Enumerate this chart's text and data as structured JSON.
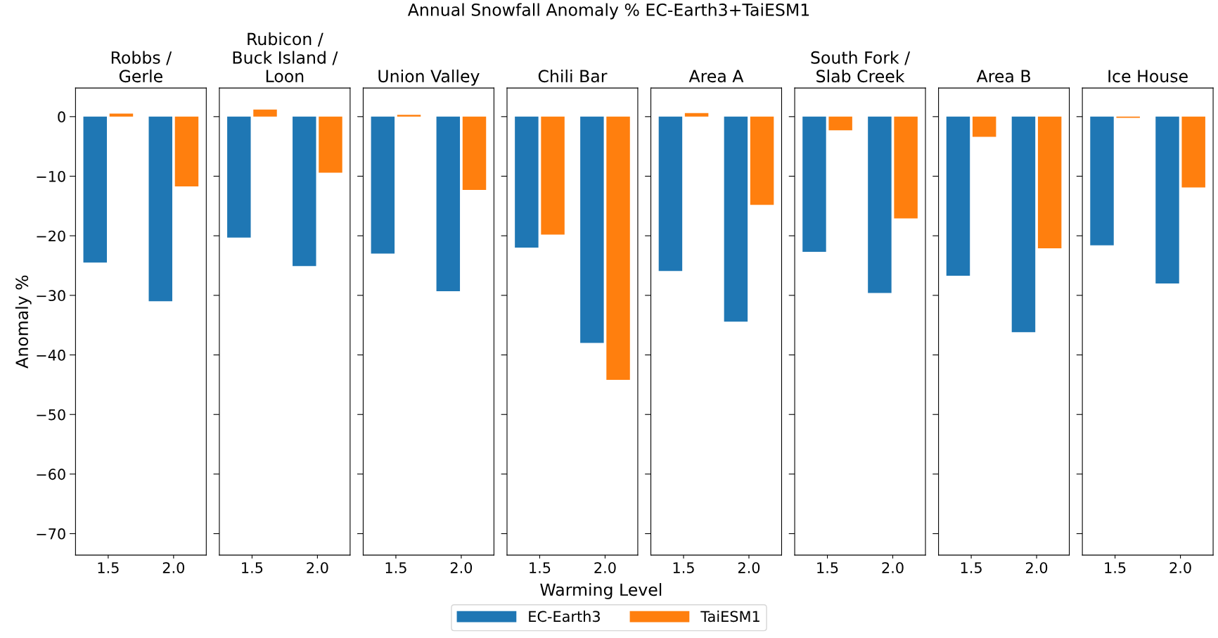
{
  "chart_data": [
    {
      "type": "bar",
      "title": "Robbs /\nGerle",
      "annotations": [
        "Annual Snowfall Anomaly % EC-Earth3+TaiESM1"
      ],
      "ylabel": "Anomaly %",
      "legend": "bottom",
      "categories": [
        "1.5",
        "2.0"
      ],
      "ylim": [
        -73.6,
        4.8
      ],
      "yticks": [
        {
          "value": -70,
          "label": "−70"
        },
        {
          "value": -60,
          "label": "−60"
        },
        {
          "value": -50,
          "label": "−50"
        },
        {
          "value": -40,
          "label": "−40"
        },
        {
          "value": -30,
          "label": "−30"
        },
        {
          "value": -20,
          "label": "−20"
        },
        {
          "value": -10,
          "label": "−10"
        },
        0
      ],
      "series": [
        {
          "name": "EC-Earth3",
          "color": "#1f77b4",
          "values": [
            -24.5,
            -31.0
          ]
        },
        {
          "name": "TaiESM1",
          "color": "#ff7f0e",
          "values": [
            0.5,
            -11.7
          ]
        }
      ]
    },
    {
      "type": "bar",
      "title": "Rubicon /\nBuck Island /\nLoon",
      "categories": [
        "1.5",
        "2.0"
      ],
      "tick_labels": "x",
      "ylim": [
        -73.6,
        4.8
      ],
      "yticks": [
        -70,
        -60,
        -50,
        -40,
        -30,
        -20,
        -10,
        0
      ],
      "series": [
        {
          "color": "#1f77b4",
          "values": [
            -20.3,
            -25.1
          ]
        },
        {
          "color": "#ff7f0e",
          "values": [
            1.2,
            -9.4
          ]
        }
      ]
    },
    {
      "type": "bar",
      "title": "Union Valley",
      "categories": [
        "1.5",
        "2.0"
      ],
      "tick_labels": "x",
      "ylim": [
        -73.6,
        4.8
      ],
      "yticks": [
        -70,
        -60,
        -50,
        -40,
        -30,
        -20,
        -10,
        0
      ],
      "series": [
        {
          "color": "#1f77b4",
          "values": [
            -23.0,
            -29.3
          ]
        },
        {
          "color": "#ff7f0e",
          "values": [
            0.3,
            -12.3
          ]
        }
      ]
    },
    {
      "type": "bar",
      "title": "Chili Bar",
      "xlabel": "Warming Level",
      "categories": [
        "1.5",
        "2.0"
      ],
      "tick_labels": "x",
      "ylim": [
        -73.6,
        4.8
      ],
      "yticks": [
        -70,
        -60,
        -50,
        -40,
        -30,
        -20,
        -10,
        0
      ],
      "series": [
        {
          "color": "#1f77b4",
          "values": [
            -22.0,
            -38.0
          ]
        },
        {
          "color": "#ff7f0e",
          "values": [
            -19.8,
            -44.2
          ]
        }
      ]
    },
    {
      "type": "bar",
      "title": "Area A",
      "categories": [
        "1.5",
        "2.0"
      ],
      "tick_labels": "x",
      "ylim": [
        -73.6,
        4.8
      ],
      "yticks": [
        -70,
        -60,
        -50,
        -40,
        -30,
        -20,
        -10,
        0
      ],
      "series": [
        {
          "color": "#1f77b4",
          "values": [
            -25.9,
            -34.4
          ]
        },
        {
          "color": "#ff7f0e",
          "values": [
            0.6,
            -14.8
          ]
        }
      ]
    },
    {
      "type": "bar",
      "title": "South Fork /\nSlab Creek",
      "categories": [
        "1.5",
        "2.0"
      ],
      "tick_labels": "x",
      "ylim": [
        -73.6,
        4.8
      ],
      "yticks": [
        -70,
        -60,
        -50,
        -40,
        -30,
        -20,
        -10,
        0
      ],
      "series": [
        {
          "color": "#1f77b4",
          "values": [
            -22.7,
            -29.6
          ]
        },
        {
          "color": "#ff7f0e",
          "values": [
            -2.3,
            -17.1
          ]
        }
      ]
    },
    {
      "type": "bar",
      "title": "Area B",
      "categories": [
        "1.5",
        "2.0"
      ],
      "tick_labels": "x",
      "ylim": [
        -73.6,
        4.8
      ],
      "yticks": [
        -70,
        -60,
        -50,
        -40,
        -30,
        -20,
        -10,
        0
      ],
      "series": [
        {
          "color": "#1f77b4",
          "values": [
            -26.7,
            -36.2
          ]
        },
        {
          "color": "#ff7f0e",
          "values": [
            -3.4,
            -22.1
          ]
        }
      ]
    },
    {
      "type": "bar",
      "title": "Ice House",
      "categories": [
        "1.5",
        "2.0"
      ],
      "tick_labels": "x",
      "ylim": [
        -73.6,
        4.8
      ],
      "yticks": [
        -70,
        -60,
        -50,
        -40,
        -30,
        -20,
        -10,
        0
      ],
      "series": [
        {
          "color": "#1f77b4",
          "values": [
            -21.6,
            -28.0
          ]
        },
        {
          "color": "#ff7f0e",
          "values": [
            -0.2,
            -11.9
          ]
        }
      ]
    }
  ]
}
